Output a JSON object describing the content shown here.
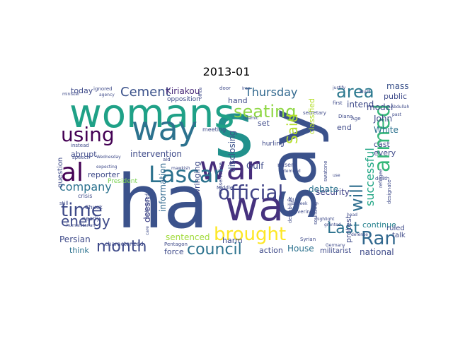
{
  "figure": {
    "title": "2013-01"
  },
  "cloud": {
    "words": [
      {
        "t": "say",
        "c": "#3b528b"
      },
      {
        "t": "ha",
        "c": "#3b528b"
      },
      {
        "t": "s",
        "c": "#21918c"
      },
      {
        "t": "womans",
        "c": "#1fa187"
      },
      {
        "t": "wa",
        "c": "#46327e"
      },
      {
        "t": "way",
        "c": "#2c728e"
      },
      {
        "t": "war",
        "c": "#472d7b"
      },
      {
        "t": "Lascar",
        "c": "#2c728e"
      },
      {
        "t": "al",
        "c": "#440154"
      },
      {
        "t": "official",
        "c": "#404387"
      },
      {
        "t": "brought",
        "c": "#fde725"
      },
      {
        "t": "armed",
        "c": "#35b779"
      },
      {
        "t": "area",
        "c": "#2a788e"
      },
      {
        "t": "using",
        "c": "#440154"
      },
      {
        "t": "time",
        "c": "#3e4a89"
      },
      {
        "t": "energy",
        "c": "#3e4a89"
      },
      {
        "t": "month",
        "c": "#3e4a89"
      },
      {
        "t": "council",
        "c": "#2c728e"
      },
      {
        "t": "Ran",
        "c": "#31688e"
      },
      {
        "t": "seating",
        "c": "#8fd744"
      },
      {
        "t": "Cement",
        "c": "#3b528b"
      },
      {
        "t": "Last",
        "c": "#2c728e"
      },
      {
        "t": "Thursday",
        "c": "#31688e"
      },
      {
        "t": "Said",
        "c": "#b5de2b"
      },
      {
        "t": "will",
        "c": "#2e6e8e"
      },
      {
        "t": "successful",
        "c": "#21a685"
      },
      {
        "t": "company",
        "c": "#2c728e"
      },
      {
        "t": "Kiriakou",
        "c": "#482878"
      },
      {
        "t": "intervention",
        "c": "#3e4a89"
      },
      {
        "t": "information",
        "c": "#31688e"
      },
      {
        "t": "sentenced",
        "c": "#a0da39"
      },
      {
        "t": "force",
        "c": "#3e4a89"
      },
      {
        "t": "security",
        "c": "#404387"
      },
      {
        "t": "continue",
        "c": "#26828e"
      },
      {
        "t": "national",
        "c": "#3e4a89"
      },
      {
        "t": "House",
        "c": "#2c728e"
      },
      {
        "t": "action",
        "c": "#3e4a89"
      },
      {
        "t": "think",
        "c": "#2c728e"
      },
      {
        "t": "Persian",
        "c": "#3e4a89"
      },
      {
        "t": "doesn",
        "c": "#404387"
      },
      {
        "t": "disclosing",
        "c": "#3b528b"
      },
      {
        "t": "Gulf",
        "c": "#3e4a89"
      },
      {
        "t": "debate",
        "c": "#2c728e"
      },
      {
        "t": "White",
        "c": "#2c728e"
      },
      {
        "t": "John",
        "c": "#3e4a89"
      },
      {
        "t": "model",
        "c": "#3e4a89"
      },
      {
        "t": "mass",
        "c": "#3b528b"
      },
      {
        "t": "public",
        "c": "#3e4a89"
      },
      {
        "t": "intend",
        "c": "#3e4a89"
      },
      {
        "t": "cast",
        "c": "#3e4a89"
      },
      {
        "t": "every",
        "c": "#3e4a89"
      },
      {
        "t": "end",
        "c": "#3e4a89"
      },
      {
        "t": "set",
        "c": "#3e4a89"
      },
      {
        "t": "hand",
        "c": "#3e4a89"
      },
      {
        "t": "today",
        "c": "#3e4a89"
      },
      {
        "t": "abrupt",
        "c": "#3e4a89"
      },
      {
        "t": "reporter",
        "c": "#3e4a89"
      },
      {
        "t": "harm",
        "c": "#3e4a89"
      },
      {
        "t": "protest",
        "c": "#3e4a89"
      },
      {
        "t": "ruled",
        "c": "#3e4a89"
      },
      {
        "t": "talk",
        "c": "#3e4a89"
      },
      {
        "t": "militarist",
        "c": "#3e4a89"
      },
      {
        "t": "question",
        "c": "#3e4a89"
      },
      {
        "t": "President",
        "c": "#7ad151"
      },
      {
        "t": "wringing",
        "c": "#3e4a89"
      },
      {
        "t": "classified",
        "c": "#b5de2b"
      },
      {
        "t": "hurling",
        "c": "#3e4a89"
      },
      {
        "t": "meeting",
        "c": "#3e4a89"
      },
      {
        "t": "opposition",
        "c": "#3e4a89"
      },
      {
        "t": "ignored",
        "c": "#3e4a89"
      },
      {
        "t": "agency",
        "c": "#3e4a89"
      },
      {
        "t": "minister",
        "c": "#3e4a89"
      },
      {
        "t": "instead",
        "c": "#3e4a89"
      },
      {
        "t": "speech",
        "c": "#3e4a89"
      },
      {
        "t": "crisis",
        "c": "#3e4a89"
      },
      {
        "t": "still",
        "c": "#3e4a89"
      },
      {
        "t": "Chuck",
        "c": "#3e4a89"
      },
      {
        "t": "nearly",
        "c": "#3e4a89"
      },
      {
        "t": "characterized",
        "c": "#3e4a89"
      },
      {
        "t": "beheaded",
        "c": "#3e4a89"
      },
      {
        "t": "Pentagon",
        "c": "#3e4a89"
      },
      {
        "t": "Middle",
        "c": "#3e4a89"
      },
      {
        "t": "conservative",
        "c": "#3e4a89"
      },
      {
        "t": "destabilize",
        "c": "#3e4a89"
      },
      {
        "t": "Syrian",
        "c": "#3e4a89"
      },
      {
        "t": "Germany",
        "c": "#3e4a89"
      },
      {
        "t": "defense",
        "c": "#3e4a89"
      },
      {
        "t": "death",
        "c": "#3e4a89"
      },
      {
        "t": "refugee",
        "c": "#3e4a89"
      },
      {
        "t": "designate",
        "c": "#3e4a89"
      },
      {
        "t": "secretary",
        "c": "#3e4a89"
      },
      {
        "t": "Age",
        "c": "#3e4a89"
      },
      {
        "t": "Diana",
        "c": "#3e4a89"
      },
      {
        "t": "first",
        "c": "#3e4a89"
      },
      {
        "t": "Abdullah",
        "c": "#3e4a89"
      },
      {
        "t": "past",
        "c": "#3e4a89"
      },
      {
        "t": "Hurt",
        "c": "#3e4a89"
      },
      {
        "t": "justify",
        "c": "#3e4a89"
      },
      {
        "t": "Iran",
        "c": "#3e4a89"
      },
      {
        "t": "door",
        "c": "#3e4a89"
      },
      {
        "t": "office",
        "c": "#3e4a89"
      },
      {
        "t": "Islamic",
        "c": "#3e4a89"
      },
      {
        "t": "misery",
        "c": "#3e4a89"
      },
      {
        "t": "demand",
        "c": "#3e4a89"
      },
      {
        "t": "swatone",
        "c": "#3e4a89"
      },
      {
        "t": "sounding",
        "c": "#3e4a89"
      },
      {
        "t": "highlight",
        "c": "#3e4a89"
      },
      {
        "t": "granted",
        "c": "#3e4a89"
      },
      {
        "t": "covering",
        "c": "#3e4a89"
      },
      {
        "t": "aid",
        "c": "#3e4a89"
      },
      {
        "t": "mawkish",
        "c": "#3e4a89"
      },
      {
        "t": "expecting",
        "c": "#3e4a89"
      },
      {
        "t": "Wednesday",
        "c": "#3e4a89"
      },
      {
        "t": "care",
        "c": "#3e4a89"
      },
      {
        "t": "humanitarian",
        "c": "#3e4a89"
      },
      {
        "t": "old",
        "c": "#3e4a89"
      },
      {
        "t": "Baheek",
        "c": "#3e4a89"
      },
      {
        "t": "use",
        "c": "#3e4a89"
      },
      {
        "t": "head",
        "c": "#3e4a89"
      },
      {
        "t": "King",
        "c": "#3e4a89"
      }
    ]
  }
}
